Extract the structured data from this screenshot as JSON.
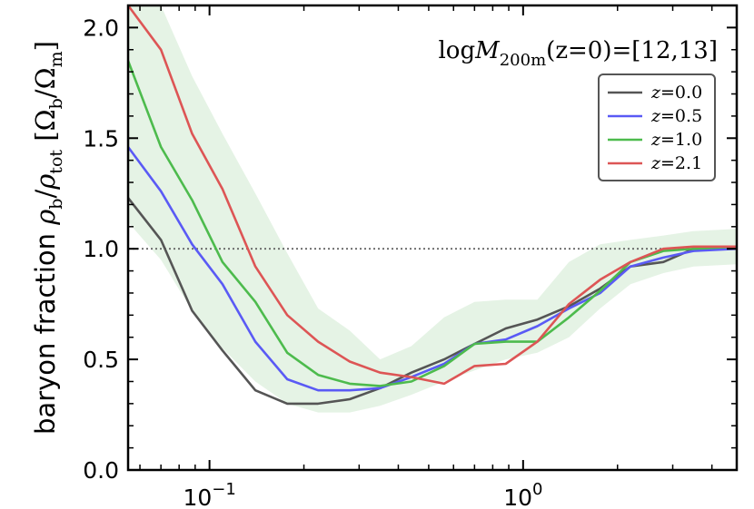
{
  "chart_data": {
    "type": "line",
    "title": "",
    "annotation": "logM200m(z=0)=[12,13]",
    "annotation_parts": {
      "prefix": "log",
      "M": "M",
      "sub": "200m",
      "rest": "(z=0)=[12,13]"
    },
    "xlabel": "",
    "ylabel": "baryon fraction ρb/ρtot [Ωb/Ωm]",
    "ylabel_parts": {
      "text": "baryon fraction ",
      "rho": "ρ",
      "b": "b",
      "tot": "tot",
      "Omega": "Ω",
      "m": "m"
    },
    "xscale": "log",
    "xlim": [
      0.055,
      4.8
    ],
    "ylim": [
      0.0,
      2.1
    ],
    "xticks": [
      {
        "value": 0.1,
        "base": "10",
        "exp": "−1"
      },
      {
        "value": 1.0,
        "base": "10",
        "exp": "0"
      }
    ],
    "yticks": [
      {
        "value": 0.0,
        "label": "0.0"
      },
      {
        "value": 0.5,
        "label": "0.5"
      },
      {
        "value": 1.0,
        "label": "1.0"
      },
      {
        "value": 1.5,
        "label": "1.5"
      },
      {
        "value": 2.0,
        "label": "2.0"
      }
    ],
    "reference_line": {
      "y": 1.0,
      "style": "dotted",
      "color": "#666666"
    },
    "band": {
      "color": "#2ca02c",
      "opacity": 0.12,
      "x": [
        0.055,
        0.07,
        0.088,
        0.11,
        0.14,
        0.177,
        0.222,
        0.28,
        0.35,
        0.44,
        0.56,
        0.7,
        0.88,
        1.11,
        1.4,
        1.76,
        2.2,
        2.8,
        3.5,
        4.8
      ],
      "upper": [
        2.1,
        2.1,
        1.78,
        1.52,
        1.25,
        0.98,
        0.73,
        0.63,
        0.5,
        0.56,
        0.69,
        0.76,
        0.77,
        0.77,
        0.94,
        1.02,
        1.04,
        1.06,
        1.08,
        1.09
      ],
      "lower": [
        1.12,
        0.95,
        0.72,
        0.55,
        0.4,
        0.3,
        0.26,
        0.26,
        0.29,
        0.34,
        0.4,
        0.45,
        0.5,
        0.53,
        0.6,
        0.73,
        0.84,
        0.89,
        0.92,
        0.93
      ]
    },
    "series": [
      {
        "name": "z=0.0",
        "z": "0.0",
        "color": "#555555",
        "x": [
          0.055,
          0.07,
          0.088,
          0.11,
          0.14,
          0.177,
          0.222,
          0.28,
          0.35,
          0.44,
          0.56,
          0.7,
          0.88,
          1.11,
          1.4,
          1.76,
          2.2,
          2.8,
          3.5,
          4.8
        ],
        "y": [
          1.23,
          1.04,
          0.72,
          0.54,
          0.36,
          0.3,
          0.3,
          0.32,
          0.37,
          0.44,
          0.5,
          0.57,
          0.64,
          0.68,
          0.74,
          0.82,
          0.92,
          0.94,
          1.0,
          1.0
        ]
      },
      {
        "name": "z=0.5",
        "z": "0.5",
        "color": "#5a5af5",
        "x": [
          0.055,
          0.07,
          0.088,
          0.11,
          0.14,
          0.177,
          0.222,
          0.28,
          0.35,
          0.44,
          0.56,
          0.7,
          0.88,
          1.11,
          1.4,
          1.76,
          2.2,
          2.8,
          3.5,
          4.8
        ],
        "y": [
          1.46,
          1.26,
          1.02,
          0.84,
          0.58,
          0.41,
          0.36,
          0.36,
          0.37,
          0.42,
          0.48,
          0.57,
          0.59,
          0.65,
          0.73,
          0.8,
          0.92,
          0.96,
          0.99,
          1.0
        ]
      },
      {
        "name": "z=1.0",
        "z": "1.0",
        "color": "#4dbb4d",
        "x": [
          0.055,
          0.07,
          0.088,
          0.11,
          0.14,
          0.177,
          0.222,
          0.28,
          0.35,
          0.44,
          0.56,
          0.7,
          0.88,
          1.11,
          1.4,
          1.76,
          2.2,
          2.8,
          3.5,
          4.8
        ],
        "y": [
          1.85,
          1.46,
          1.22,
          0.94,
          0.76,
          0.53,
          0.43,
          0.39,
          0.38,
          0.4,
          0.47,
          0.57,
          0.58,
          0.58,
          0.69,
          0.81,
          0.94,
          0.99,
          1.0,
          1.01
        ]
      },
      {
        "name": "z=2.1",
        "z": "2.1",
        "color": "#dd5555",
        "x": [
          0.055,
          0.07,
          0.088,
          0.11,
          0.14,
          0.177,
          0.222,
          0.28,
          0.35,
          0.44,
          0.56,
          0.7,
          0.88,
          1.11,
          1.4,
          1.76,
          2.2,
          2.8,
          3.5,
          4.8
        ],
        "y": [
          2.1,
          1.9,
          1.52,
          1.27,
          0.92,
          0.7,
          0.58,
          0.49,
          0.44,
          0.42,
          0.39,
          0.47,
          0.48,
          0.58,
          0.75,
          0.86,
          0.94,
          1.0,
          1.01,
          1.01
        ]
      }
    ],
    "legend": {
      "placement": "upper-right",
      "label_prefix": "z",
      "equals": "="
    }
  }
}
